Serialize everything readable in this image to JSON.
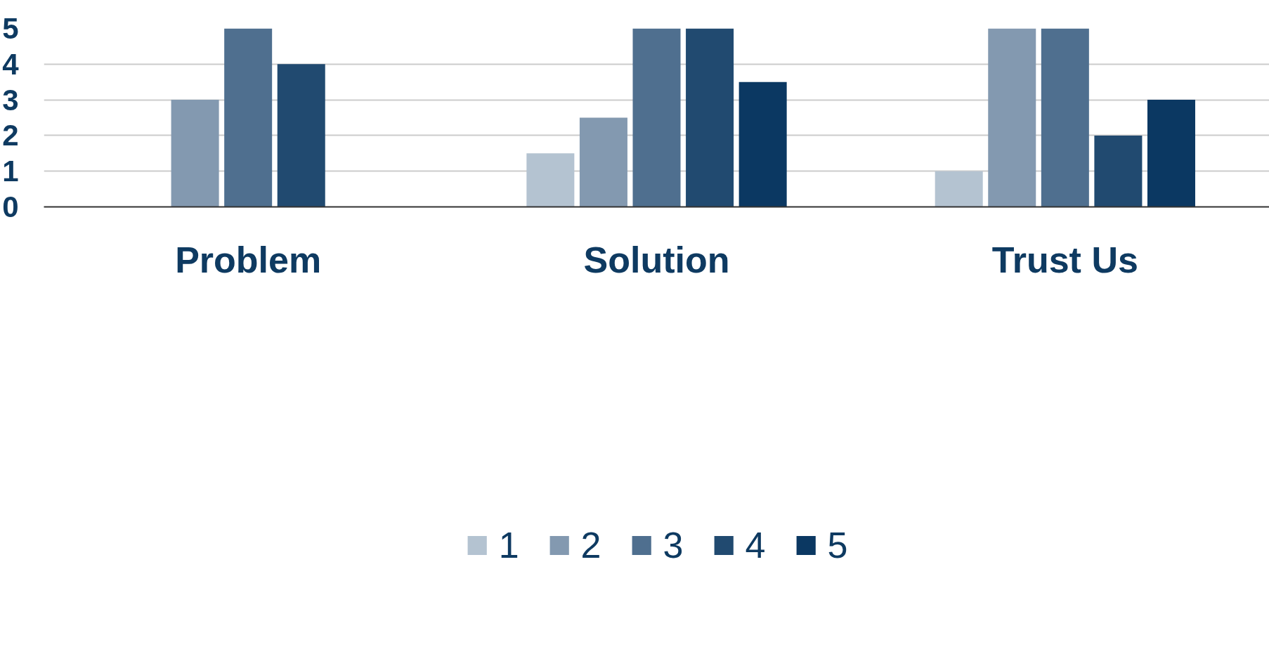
{
  "chart_data": {
    "type": "bar",
    "categories": [
      "Problem",
      "Solution",
      "Trust Us"
    ],
    "series": [
      {
        "name": "1",
        "color": "#b4c3d1",
        "values": [
          0,
          1.5,
          1
        ]
      },
      {
        "name": "2",
        "color": "#8399b0",
        "values": [
          3,
          2.5,
          5
        ]
      },
      {
        "name": "3",
        "color": "#4f6f8f",
        "values": [
          5,
          5,
          5
        ]
      },
      {
        "name": "4",
        "color": "#214a70",
        "values": [
          4,
          5,
          2
        ]
      },
      {
        "name": "5",
        "color": "#0b3862",
        "values": [
          0,
          3.5,
          3
        ]
      }
    ],
    "ylim": [
      0,
      5
    ],
    "yticks": [
      0,
      1,
      2,
      3,
      4,
      5
    ],
    "grid": "y",
    "legend": "bottom"
  }
}
